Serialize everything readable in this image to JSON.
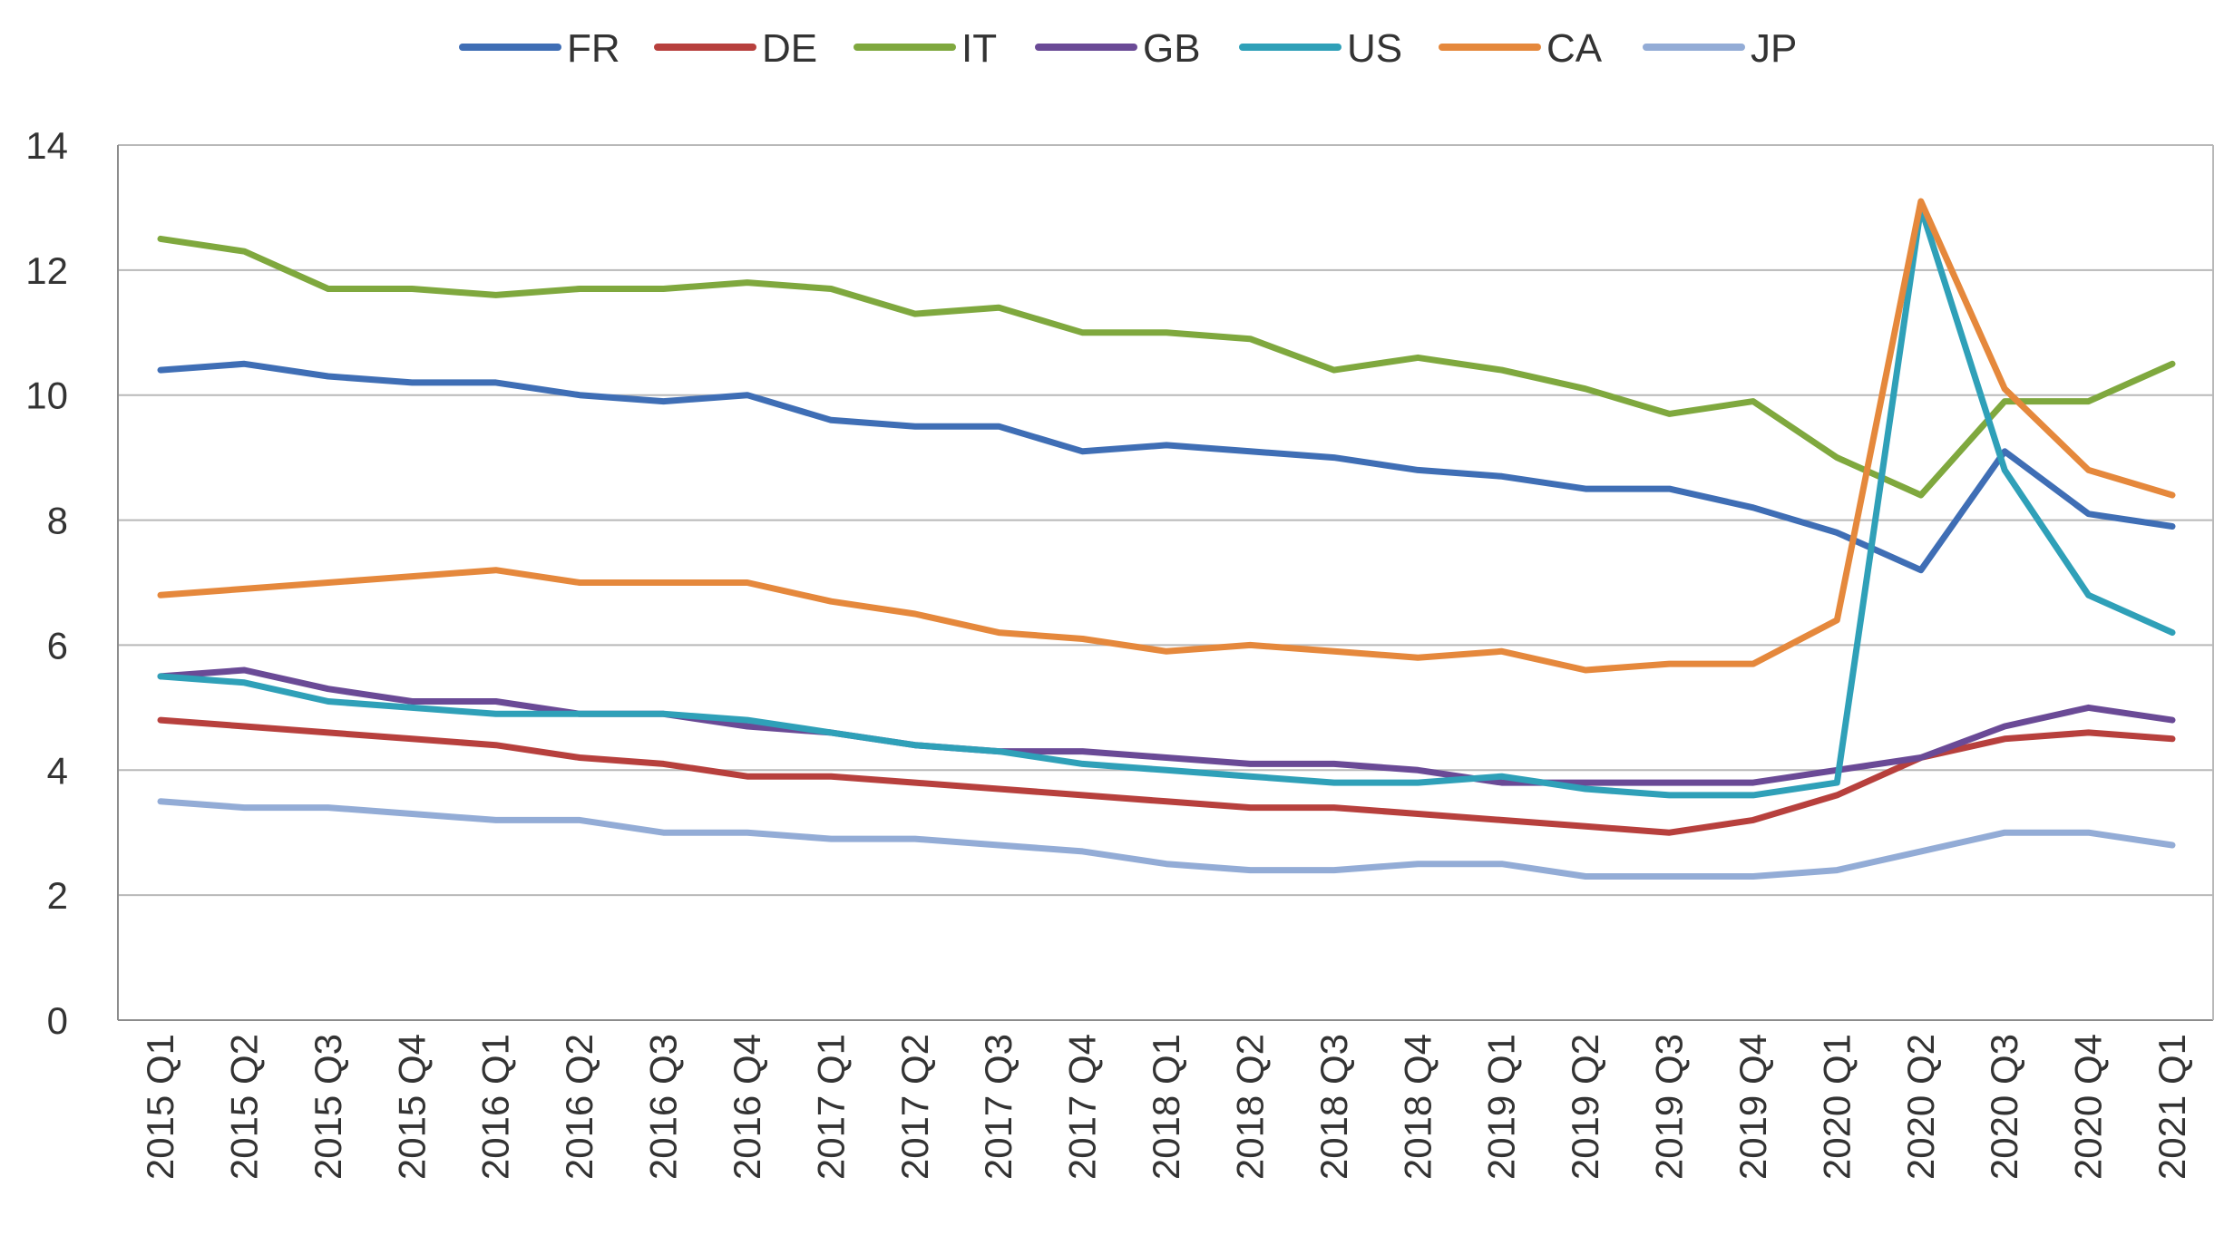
{
  "chart_data": {
    "type": "line",
    "title": "",
    "xlabel": "",
    "ylabel": "",
    "ylim": [
      0,
      14
    ],
    "yticks": [
      0,
      2,
      4,
      6,
      8,
      10,
      12,
      14
    ],
    "grid": true,
    "legend_position": "top",
    "categories": [
      "2015 Q1",
      "2015 Q2",
      "2015 Q3",
      "2015 Q4",
      "2016 Q1",
      "2016 Q2",
      "2016 Q3",
      "2016 Q4",
      "2017 Q1",
      "2017 Q2",
      "2017 Q3",
      "2017 Q4",
      "2018 Q1",
      "2018 Q2",
      "2018 Q3",
      "2018 Q4",
      "2019 Q1",
      "2019 Q2",
      "2019 Q3",
      "2019 Q4",
      "2020 Q1",
      "2020 Q2",
      "2020 Q3",
      "2020 Q4",
      "2021 Q1"
    ],
    "series": [
      {
        "name": "FR",
        "color": "#3f6eb5",
        "values": [
          10.4,
          10.5,
          10.3,
          10.2,
          10.2,
          10.0,
          9.9,
          10.0,
          9.6,
          9.5,
          9.5,
          9.1,
          9.2,
          9.1,
          9.0,
          8.8,
          8.7,
          8.5,
          8.5,
          8.2,
          7.8,
          7.2,
          9.1,
          8.1,
          7.9
        ]
      },
      {
        "name": "DE",
        "color": "#b7403d",
        "values": [
          4.8,
          4.7,
          4.6,
          4.5,
          4.4,
          4.2,
          4.1,
          3.9,
          3.9,
          3.8,
          3.7,
          3.6,
          3.5,
          3.4,
          3.4,
          3.3,
          3.2,
          3.1,
          3.0,
          3.2,
          3.6,
          4.2,
          4.5,
          4.6,
          4.5
        ]
      },
      {
        "name": "IT",
        "color": "#7fa83e",
        "values": [
          12.5,
          12.3,
          11.7,
          11.7,
          11.6,
          11.7,
          11.7,
          11.8,
          11.7,
          11.3,
          11.4,
          11.0,
          11.0,
          10.9,
          10.4,
          10.6,
          10.4,
          10.1,
          9.7,
          9.9,
          9.0,
          8.4,
          9.9,
          9.9,
          10.5
        ]
      },
      {
        "name": "GB",
        "color": "#6a4a96",
        "values": [
          5.5,
          5.6,
          5.3,
          5.1,
          5.1,
          4.9,
          4.9,
          4.7,
          4.6,
          4.4,
          4.3,
          4.3,
          4.2,
          4.1,
          4.1,
          4.0,
          3.8,
          3.8,
          3.8,
          3.8,
          4.0,
          4.2,
          4.7,
          5.0,
          4.8
        ]
      },
      {
        "name": "US",
        "color": "#2fa0b8",
        "values": [
          5.5,
          5.4,
          5.1,
          5.0,
          4.9,
          4.9,
          4.9,
          4.8,
          4.6,
          4.4,
          4.3,
          4.1,
          4.0,
          3.9,
          3.8,
          3.8,
          3.9,
          3.7,
          3.6,
          3.6,
          3.8,
          13.0,
          8.8,
          6.8,
          6.2
        ]
      },
      {
        "name": "CA",
        "color": "#e5883c",
        "values": [
          6.8,
          6.9,
          7.0,
          7.1,
          7.2,
          7.0,
          7.0,
          7.0,
          6.7,
          6.5,
          6.2,
          6.1,
          5.9,
          6.0,
          5.9,
          5.8,
          5.9,
          5.6,
          5.7,
          5.7,
          6.4,
          13.1,
          10.1,
          8.8,
          8.4
        ]
      },
      {
        "name": "JP",
        "color": "#93acd6",
        "values": [
          3.5,
          3.4,
          3.4,
          3.3,
          3.2,
          3.2,
          3.0,
          3.0,
          2.9,
          2.9,
          2.8,
          2.7,
          2.5,
          2.4,
          2.4,
          2.5,
          2.5,
          2.3,
          2.3,
          2.3,
          2.4,
          2.7,
          3.0,
          3.0,
          2.8
        ]
      }
    ]
  }
}
